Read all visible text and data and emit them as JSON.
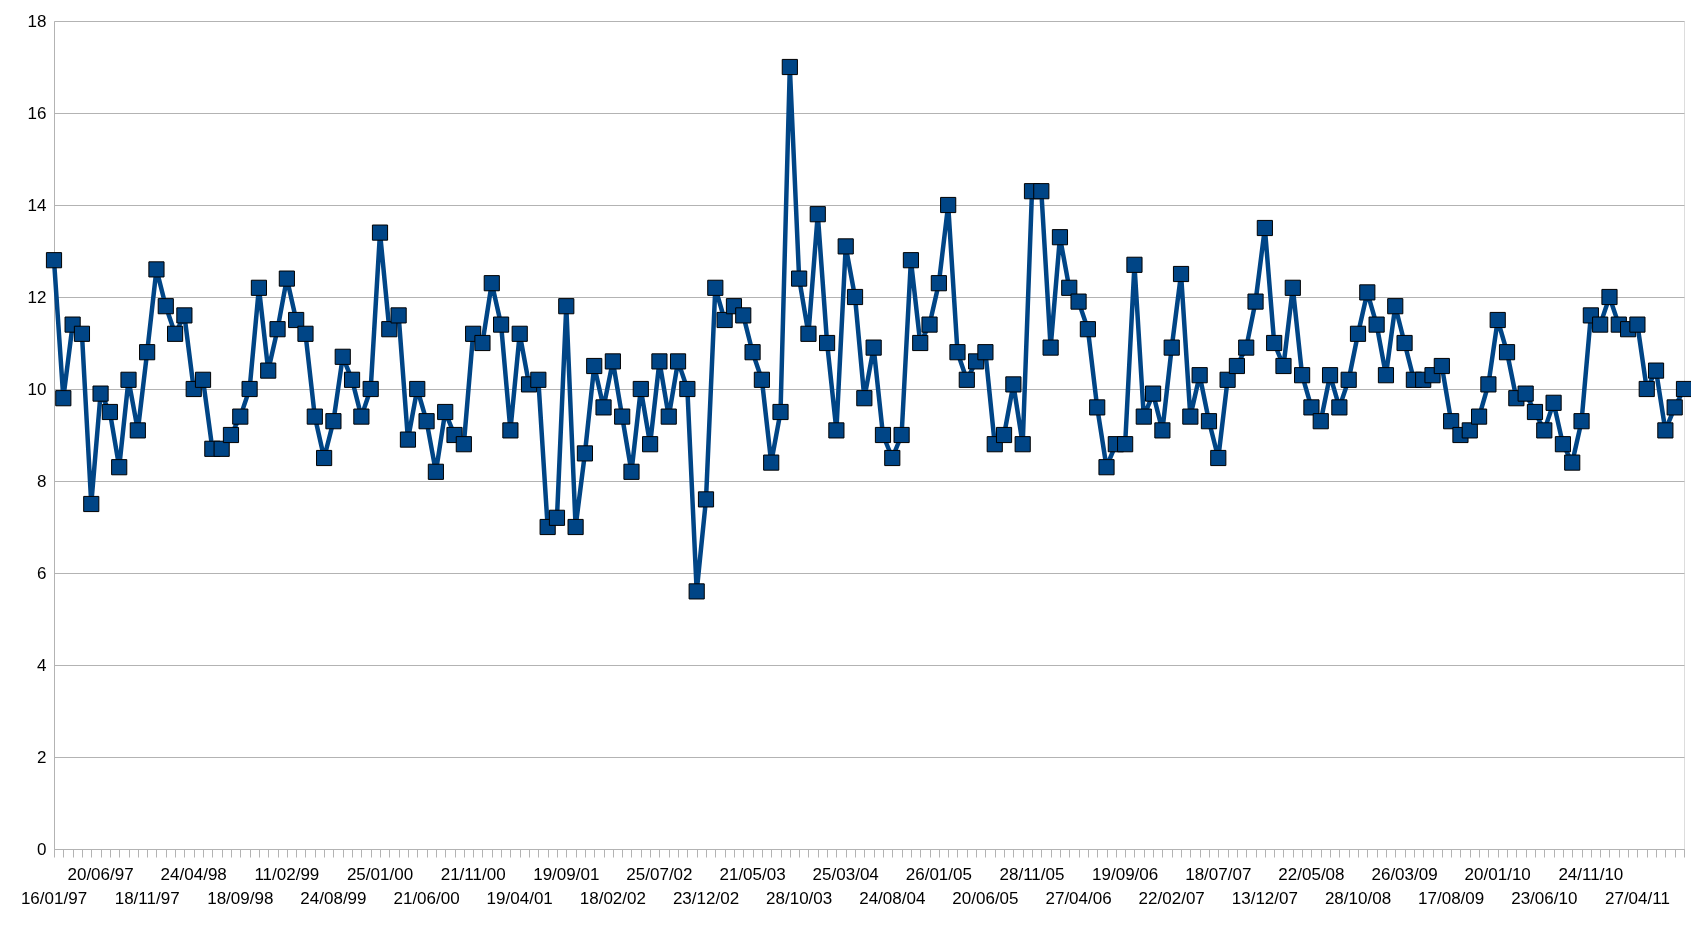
{
  "chart_data": {
    "type": "line",
    "marker": "square",
    "line_style": "solid",
    "grid": "y",
    "categories": [
      "16/01/97",
      null,
      null,
      null,
      null,
      "20/06/97",
      null,
      null,
      null,
      null,
      "18/11/97",
      null,
      null,
      null,
      null,
      "24/04/98",
      null,
      null,
      null,
      null,
      "18/09/98",
      null,
      null,
      null,
      null,
      "11/02/99",
      null,
      null,
      null,
      null,
      "24/08/99",
      null,
      null,
      null,
      null,
      "25/01/00",
      null,
      null,
      null,
      null,
      "21/06/00",
      null,
      null,
      null,
      null,
      "21/11/00",
      null,
      null,
      null,
      null,
      "19/04/01",
      null,
      null,
      null,
      null,
      "19/09/01",
      null,
      null,
      null,
      null,
      "18/02/02",
      null,
      null,
      null,
      null,
      "25/07/02",
      null,
      null,
      null,
      null,
      "23/12/02",
      null,
      null,
      null,
      null,
      "21/05/03",
      null,
      null,
      null,
      null,
      "28/10/03",
      null,
      null,
      null,
      null,
      "25/03/04",
      null,
      null,
      null,
      null,
      "24/08/04",
      null,
      null,
      null,
      null,
      "26/01/05",
      null,
      null,
      null,
      null,
      "20/06/05",
      null,
      null,
      null,
      null,
      "28/11/05",
      null,
      null,
      null,
      null,
      "27/04/06",
      null,
      null,
      null,
      null,
      "19/09/06",
      null,
      null,
      null,
      null,
      "22/02/07",
      null,
      null,
      null,
      null,
      "18/07/07",
      null,
      null,
      null,
      null,
      "13/12/07",
      null,
      null,
      null,
      null,
      "22/05/08",
      null,
      null,
      null,
      null,
      "28/10/08",
      null,
      null,
      null,
      null,
      "26/03/09",
      null,
      null,
      null,
      null,
      "17/08/09",
      null,
      null,
      null,
      null,
      "20/01/10",
      null,
      null,
      null,
      null,
      "23/06/10",
      null,
      null,
      null,
      null,
      "24/11/10",
      null,
      null,
      null,
      null,
      "27/04/11",
      null,
      null,
      null,
      null,
      null
    ],
    "series": [
      {
        "color": "#004586",
        "values": [
          12.8,
          9.8,
          11.4,
          11.2,
          7.5,
          9.9,
          9.5,
          8.3,
          10.2,
          9.1,
          10.8,
          12.6,
          11.8,
          11.2,
          11.6,
          10.0,
          10.2,
          8.7,
          8.7,
          9.0,
          9.4,
          10.0,
          12.2,
          10.4,
          11.3,
          12.4,
          11.5,
          11.2,
          9.4,
          8.5,
          9.3,
          10.7,
          10.2,
          9.4,
          10.0,
          13.4,
          11.3,
          11.6,
          8.9,
          10.0,
          9.3,
          8.2,
          9.5,
          9.0,
          8.8,
          11.2,
          11.0,
          12.3,
          11.4,
          9.1,
          11.2,
          10.1,
          10.2,
          7.0,
          7.2,
          11.8,
          7.0,
          8.6,
          10.5,
          9.6,
          10.6,
          9.4,
          8.2,
          10.0,
          8.8,
          10.6,
          9.4,
          10.6,
          10.0,
          5.6,
          7.6,
          12.2,
          11.5,
          11.8,
          11.6,
          10.8,
          10.2,
          8.4,
          9.5,
          17.0,
          12.4,
          11.2,
          13.8,
          11.0,
          9.1,
          13.1,
          12.0,
          9.8,
          10.9,
          9.0,
          8.5,
          9.0,
          12.8,
          11.0,
          11.4,
          12.3,
          14.0,
          10.8,
          10.2,
          10.6,
          10.8,
          8.8,
          9.0,
          10.1,
          8.8,
          14.3,
          14.3,
          10.9,
          13.3,
          12.2,
          11.9,
          11.3,
          9.6,
          8.3,
          8.8,
          8.8,
          12.7,
          9.4,
          9.9,
          9.1,
          10.9,
          12.5,
          9.4,
          10.3,
          9.3,
          8.5,
          10.2,
          10.5,
          10.9,
          11.9,
          13.5,
          11.0,
          10.5,
          12.2,
          10.3,
          9.6,
          9.3,
          10.3,
          9.6,
          10.2,
          11.2,
          12.1,
          11.4,
          10.3,
          11.8,
          11.0,
          10.2,
          10.2,
          10.3,
          10.5,
          9.3,
          9.0,
          9.1,
          9.4,
          10.1,
          11.5,
          10.8,
          9.8,
          9.9,
          9.5,
          9.1,
          9.7,
          8.8,
          8.4,
          9.3,
          11.6,
          11.4,
          12.0,
          11.4,
          11.3,
          11.4,
          10.0,
          10.4,
          9.1,
          9.6,
          10.0
        ]
      }
    ],
    "ylim": [
      0,
      18
    ],
    "yticks": [
      0,
      2,
      4,
      6,
      8,
      10,
      12,
      14,
      16,
      18
    ]
  }
}
